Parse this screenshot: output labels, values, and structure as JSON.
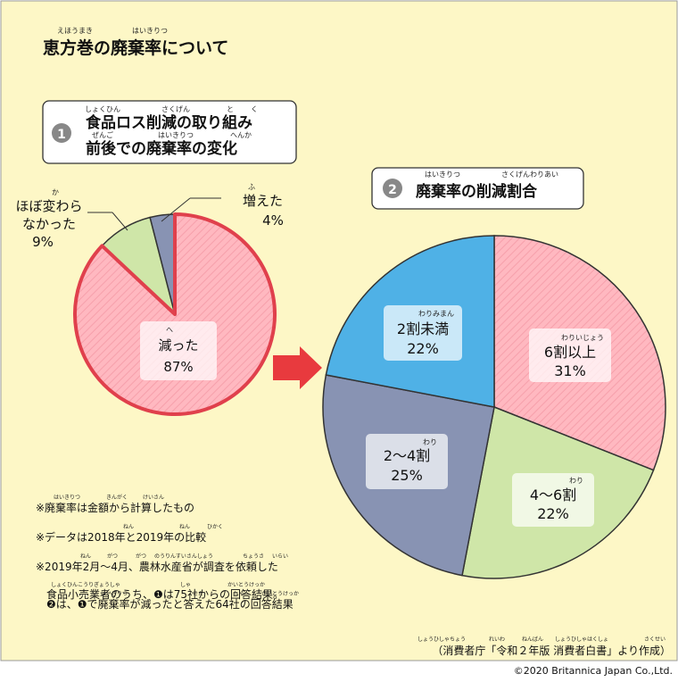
{
  "page": {
    "title": "恵方巻の廃棄率について",
    "title_ruby": [
      "えほうまき",
      "はいきりつ"
    ],
    "copyright": "©2020 Britannica Japan Co.,Ltd."
  },
  "colors": {
    "background": "#fdf7c6",
    "border": "#999999",
    "pink": "#ffb8c0",
    "pink_stroke": "#e0404c",
    "green": "#cfe6a8",
    "slate": "#8893b3",
    "blue": "#4fb1e6",
    "arrow": "#e83a3e"
  },
  "notes": [
    {
      "text": "※廃棄率は金額から計算したもの",
      "ruby": [
        "はいきりつ",
        "きんがく",
        "けいさん"
      ]
    },
    {
      "text": "※データは2018年と2019年の比較",
      "ruby": [
        "ねん",
        "ねん",
        "ひかく"
      ]
    },
    {
      "text": "※2019年2月～4月、農林水産省が調査を依頼した",
      "ruby": [
        "ねん",
        "がつ",
        "がつ",
        "のうりんすいさんしょう",
        "ちょうさ",
        "いらい"
      ]
    },
    {
      "text": "食品小売業者のうち、❶は75社からの回答結果。",
      "ruby": [
        "しょくひんこうりぎょうしゃ",
        "しゃ",
        "かいとうけっか"
      ]
    },
    {
      "text": "❷は、❶で廃棄率が減ったと答えた64社の回答結果",
      "ruby": [
        "はいきりつ",
        "へ",
        "こた",
        "しゃ",
        "かいとうけっか"
      ]
    }
  ],
  "source": {
    "text": "（消費者庁「令和２年版 消費者白書」より作成）",
    "ruby": [
      "しょうひしゃちょう",
      "れいわ",
      "ねんばん",
      "しょうひしゃはくしょ",
      "さくせい"
    ]
  },
  "chart_data": [
    {
      "type": "pie",
      "number": "❶",
      "title": "食品ロス削減の取り組み前後での廃棄率の変化",
      "title_lines": [
        "食品ロス削減の取り組み",
        "前後での廃棄率の変化"
      ],
      "title_ruby": [
        "しょくひん",
        "さくげん",
        "と",
        "く",
        "ぜんご",
        "はいきりつ",
        "へんか"
      ],
      "slices": [
        {
          "label": "減った",
          "value": 87,
          "value_label": "87%",
          "color": "pink",
          "ruby": "へ"
        },
        {
          "label": "ほぼ変わらなかった",
          "label_lines": [
            "ほぼ変わら",
            "なかった"
          ],
          "value": 9,
          "value_label": "9%",
          "color": "green",
          "ruby": "か"
        },
        {
          "label": "増えた",
          "value": 4,
          "value_label": "4%",
          "color": "slate",
          "ruby": "ふ"
        }
      ]
    },
    {
      "type": "pie",
      "number": "❷",
      "title": "廃棄率の削減割合",
      "title_ruby": [
        "はいきりつ",
        "さくげんわりあい"
      ],
      "slices": [
        {
          "label": "6割以上",
          "value": 31,
          "value_label": "31%",
          "color": "pink",
          "ruby": "わりいじょう"
        },
        {
          "label": "4～6割",
          "value": 22,
          "value_label": "22%",
          "color": "green",
          "ruby": "わり"
        },
        {
          "label": "2～4割",
          "value": 25,
          "value_label": "25%",
          "color": "slate",
          "ruby": "わり"
        },
        {
          "label": "2割未満",
          "value": 22,
          "value_label": "22%",
          "color": "blue",
          "ruby": "わりみまん"
        }
      ]
    }
  ]
}
